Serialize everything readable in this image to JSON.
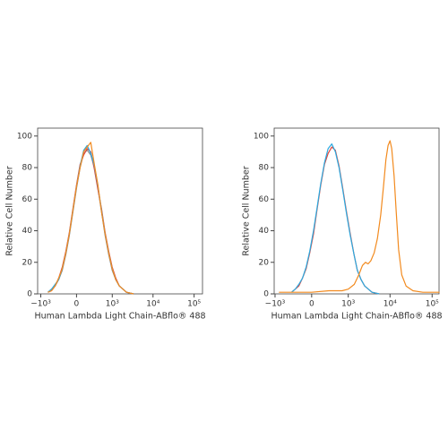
{
  "chart_data": [
    {
      "type": "line",
      "xlabel": "Human Lambda Light Chain-ABflo® 488",
      "ylabel": "Relative Cell Number",
      "xscale": "biexponential",
      "xlim": [
        -1200,
        160000
      ],
      "ylim": [
        0,
        105
      ],
      "xticks": [
        {
          "value": -1000,
          "label": "−10³"
        },
        0,
        {
          "value": 1000,
          "label": "10³"
        },
        {
          "value": 10000,
          "label": "10⁴"
        },
        {
          "value": 100000,
          "label": "10⁵"
        }
      ],
      "yticks": [
        0,
        20,
        40,
        60,
        80,
        100
      ],
      "x": [
        -653,
        -524,
        -415,
        -323,
        -244,
        -175,
        -113,
        -55,
        0,
        55,
        113,
        175,
        244,
        323,
        415,
        524,
        653,
        812,
        997,
        1222,
        1500,
        2253,
        3368
      ],
      "series": [
        {
          "color": "#8a8a8a",
          "values": [
            1,
            3,
            5,
            9,
            15,
            25,
            37,
            52,
            67,
            80,
            89,
            91,
            88,
            80,
            67,
            52,
            37,
            25,
            15,
            9,
            5,
            1,
            0
          ]
        },
        {
          "color": "#e0453a",
          "values": [
            1,
            2,
            5,
            10,
            17,
            27,
            39,
            54,
            69,
            82,
            88,
            92,
            90,
            79,
            66,
            54,
            39,
            27,
            17,
            10,
            5,
            1,
            0
          ]
        },
        {
          "color": "#2aa9e0",
          "values": [
            1,
            3,
            6,
            9,
            16,
            26,
            38,
            53,
            68,
            81,
            91,
            94,
            89,
            81,
            68,
            53,
            38,
            26,
            16,
            9,
            5,
            1,
            0
          ]
        },
        {
          "color": "#f28a1e",
          "values": [
            1,
            2,
            5,
            10,
            16,
            26,
            38,
            53,
            68,
            80,
            90,
            93,
            96,
            82,
            69,
            52,
            38,
            26,
            16,
            9,
            5,
            1,
            0
          ]
        }
      ]
    },
    {
      "type": "line",
      "xlabel": "Human Lambda Light Chain-ABflo® 488",
      "ylabel": "Relative Cell Number",
      "xscale": "biexponential",
      "xlim": [
        -1050,
        146000
      ],
      "ylim": [
        0,
        105
      ],
      "xticks": [
        {
          "value": -1000,
          "label": "−10³"
        },
        0,
        {
          "value": 1000,
          "label": "10³"
        },
        {
          "value": 10000,
          "label": "10⁴"
        },
        {
          "value": 100000,
          "label": "10⁵"
        }
      ],
      "yticks": [
        0,
        20,
        40,
        60,
        80,
        100
      ],
      "x": [
        -367,
        -282,
        -209,
        -143,
        -84,
        -28,
        28,
        84,
        143,
        209,
        282,
        367,
        466,
        584,
        728,
        904,
        1119,
        1382,
        1664,
        2043,
        2491,
        3726,
        5560
      ],
      "series": [
        {
          "color": "#e0453a",
          "values": [
            1,
            3,
            5,
            10,
            16,
            26,
            38,
            54,
            69,
            82,
            89,
            93,
            91,
            81,
            67,
            52,
            38,
            25,
            15,
            9,
            5,
            1,
            0
          ]
        },
        {
          "color": "#2aa9e0",
          "values": [
            1,
            3,
            6,
            10,
            17,
            27,
            40,
            55,
            70,
            83,
            92,
            95,
            90,
            80,
            66,
            51,
            37,
            25,
            15,
            9,
            5,
            1,
            0
          ]
        },
        {
          "color": "#f28a1e",
          "x": [
            -800,
            -300,
            0,
            300,
            700,
            1000,
            1400,
            1800,
            2200,
            2600,
            3000,
            3500,
            4200,
            5000,
            6000,
            7000,
            8000,
            9000,
            10000,
            11000,
            12500,
            14000,
            16000,
            19000,
            24000,
            35000,
            60000,
            100000,
            150000
          ],
          "values": [
            1,
            1,
            1,
            2,
            2,
            3,
            6,
            12,
            18,
            20,
            19,
            21,
            26,
            35,
            50,
            68,
            85,
            94,
            97,
            92,
            75,
            52,
            28,
            12,
            5,
            2,
            1,
            1,
            1
          ]
        }
      ]
    }
  ]
}
